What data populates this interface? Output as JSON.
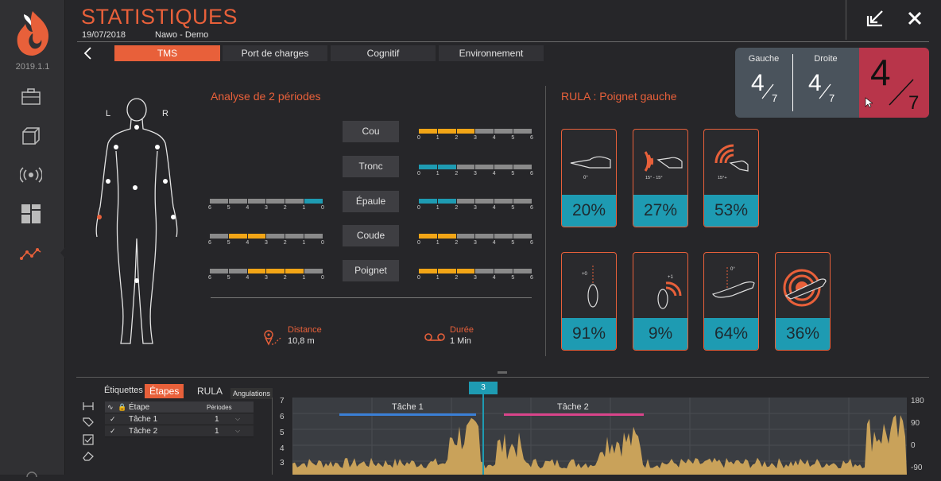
{
  "app": {
    "version": "2019.1.1",
    "title": "STATISTIQUES",
    "date": "19/07/2018",
    "user": "Nawo - Demo"
  },
  "sidebar": {
    "items": [
      {
        "icon": "suitcase-icon"
      },
      {
        "icon": "cube-icon"
      },
      {
        "icon": "broadcast-icon"
      },
      {
        "icon": "dashboard-icon"
      },
      {
        "icon": "stats-line-icon",
        "active": true
      }
    ]
  },
  "tabs": [
    {
      "label": "TMS",
      "active": true
    },
    {
      "label": "Port de charges"
    },
    {
      "label": "Cognitif"
    },
    {
      "label": "Environnement"
    }
  ],
  "scores": {
    "gauche_label": "Gauche",
    "gauche_num": "4",
    "gauche_den": "7",
    "droite_label": "Droite",
    "droite_num": "4",
    "droite_den": "7",
    "total_num": "4",
    "total_den": "7"
  },
  "analysis": {
    "title": "Analyse de 2 périodes",
    "left_label": "L",
    "right_label": "R",
    "joints": [
      {
        "label": "Cou",
        "left": null,
        "right": {
          "filled": [
            0,
            1,
            2
          ],
          "color": "orange"
        }
      },
      {
        "label": "Tronc",
        "left": null,
        "right": {
          "filled": [
            0,
            1
          ],
          "color": "teal"
        }
      },
      {
        "label": "Épaule",
        "left": {
          "filled": [
            5
          ],
          "color": "teal"
        },
        "right": {
          "filled": [
            0,
            1
          ],
          "color": "teal"
        }
      },
      {
        "label": "Coude",
        "left": {
          "filled": [
            1,
            2
          ],
          "color": "orange"
        },
        "right": {
          "filled": [
            0,
            1
          ],
          "color": "orange"
        }
      },
      {
        "label": "Poignet",
        "left": {
          "filled": [
            2,
            3,
            4
          ],
          "color": "orange"
        },
        "right": {
          "filled": [
            0,
            1,
            2
          ],
          "color": "orange"
        }
      }
    ],
    "distance_label": "Distance",
    "distance_value": "10,8 m",
    "duree_label": "Durée",
    "duree_value": "1 Min"
  },
  "rula": {
    "title": "RULA : Poignet gauche",
    "cards_row1": [
      {
        "pct": "20%",
        "caption": "0°",
        "icon": "wrist-neutral-icon"
      },
      {
        "pct": "27%",
        "caption": "15° - 15°",
        "icon": "wrist-flex-small-icon"
      },
      {
        "pct": "53%",
        "caption": "15°+",
        "icon": "wrist-flex-large-icon"
      }
    ],
    "cards_row2": [
      {
        "pct": "91%",
        "caption": "+0",
        "icon": "wrist-deviation-none-icon"
      },
      {
        "pct": "9%",
        "caption": "+1",
        "icon": "wrist-deviation-icon"
      },
      {
        "pct": "64%",
        "caption": "0°",
        "icon": "wrist-twist-none-icon"
      },
      {
        "pct": "36%",
        "caption": "",
        "icon": "wrist-twist-icon"
      }
    ]
  },
  "bottom": {
    "tabs": [
      "Étiquettes",
      "Étapes",
      "RULA",
      "Angulations"
    ],
    "table_head": {
      "step": "Étape",
      "periods": "Périodes"
    },
    "rows": [
      {
        "name": "Tâche 1",
        "periods": "1"
      },
      {
        "name": "Tâche 2",
        "periods": "1"
      }
    ],
    "cursor_label": "3",
    "task1_label": "Tâche 1",
    "task2_label": "Tâche 2",
    "y_left": [
      "7",
      "6",
      "5",
      "4",
      "3"
    ],
    "y_right": [
      "180",
      "90",
      "0",
      "-90"
    ]
  },
  "colors": {
    "accent": "#e8603a",
    "teal": "#1e9bb2",
    "orange": "#f2a516",
    "red_score": "#b8354a",
    "chart_fill": "#c9a25a"
  }
}
